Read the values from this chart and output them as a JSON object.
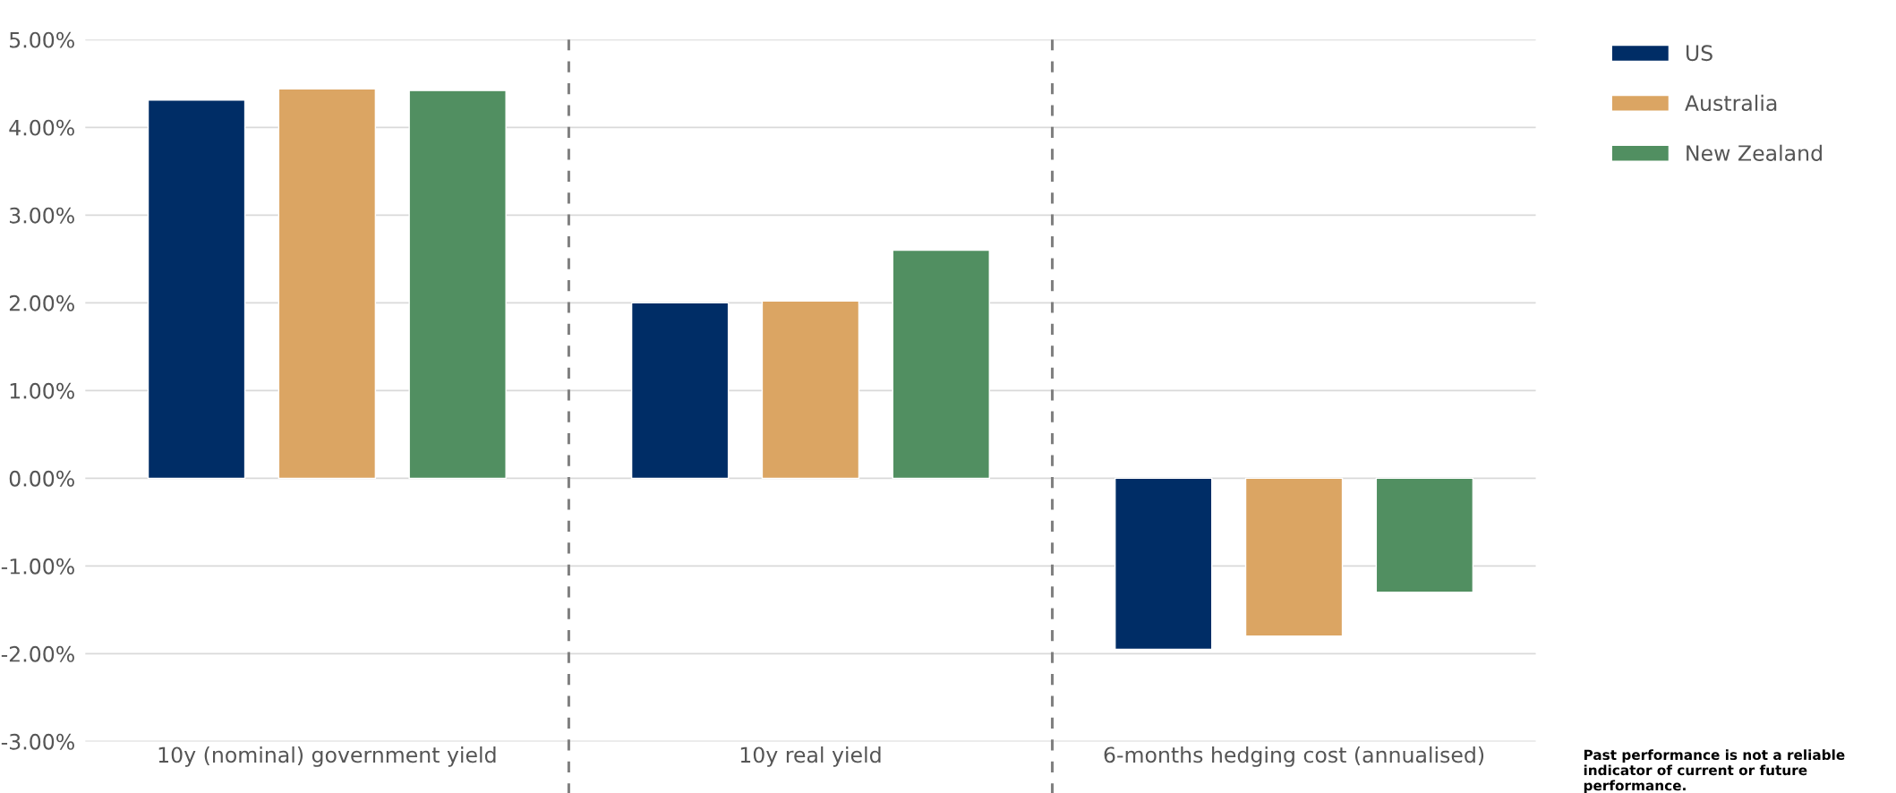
{
  "chart_data": {
    "type": "bar",
    "categories": [
      "10y (nominal) government yield",
      "10y real yield",
      "6-months hedging cost (annualised)"
    ],
    "series": [
      {
        "name": "US",
        "color": "#002d66",
        "values": [
          4.31,
          2.0,
          -1.95
        ]
      },
      {
        "name": "Australia",
        "color": "#dba563",
        "values": [
          4.44,
          2.02,
          -1.8
        ]
      },
      {
        "name": "New Zealand",
        "color": "#518f61",
        "values": [
          4.42,
          2.6,
          -1.3
        ]
      }
    ],
    "ylim": [
      -3,
      5
    ],
    "yticks": [
      {
        "value": -3,
        "label": "-3.00%"
      },
      {
        "value": -2,
        "label": "-2.00%"
      },
      {
        "value": -1,
        "label": "-1.00%"
      },
      {
        "value": 0,
        "label": "0.00%"
      },
      {
        "value": 1,
        "label": "1.00%"
      },
      {
        "value": 2,
        "label": "2.00%"
      },
      {
        "value": 3,
        "label": "3.00%"
      },
      {
        "value": 4,
        "label": "4.00%"
      },
      {
        "value": 5,
        "label": "5.00%"
      }
    ],
    "grid": "y",
    "legend": "right",
    "annotations": [
      "Past performance is not a reliable indicator of current or future performance."
    ]
  }
}
